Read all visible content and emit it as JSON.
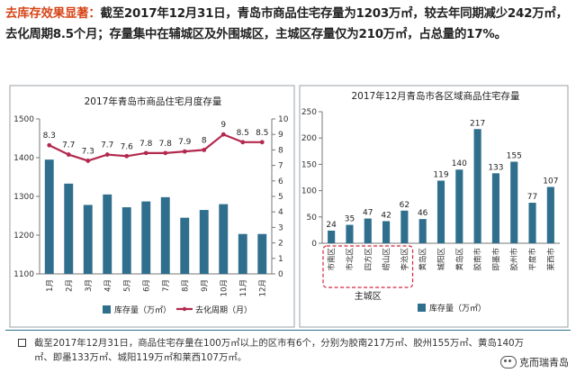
{
  "headline": {
    "highlight": "去库存效果显著：",
    "text": "截至2017年12月31日，青岛市商品住宅存量为1203万㎡，较去年同期减少242万㎡，去化周期8.5个月；存量集中在辅城区及外围城区，主城区存量仅为210万㎡，占总量的17%。"
  },
  "chart_data": [
    {
      "type": "bar",
      "title": "2017年青岛市商品住宅月度存量",
      "categories": [
        "1月",
        "2月",
        "3月",
        "4月",
        "5月",
        "6月",
        "7月",
        "8月",
        "9月",
        "10月",
        "11月",
        "12月"
      ],
      "ylim": [
        1100,
        1500
      ],
      "y2lim": [
        0,
        10
      ],
      "yticks": [
        "1100",
        "1200",
        "1300",
        "1400",
        "1500"
      ],
      "y2ticks": [
        "0",
        "1",
        "2",
        "3",
        "4",
        "5",
        "6",
        "7",
        "8",
        "9",
        "10"
      ],
      "series": [
        {
          "name": "库存量（万㎡）",
          "type": "bar",
          "color": "#2f6f8d",
          "values": [
            1395,
            1333,
            1278,
            1305,
            1272,
            1287,
            1298,
            1245,
            1265,
            1280,
            1203,
            1203
          ]
        },
        {
          "name": "去化周期（月）",
          "type": "line",
          "axis": "right",
          "color": "#b3294e",
          "values": [
            8.3,
            7.7,
            7.3,
            7.7,
            7.6,
            7.8,
            7.8,
            7.9,
            8,
            9,
            8.5,
            8.5
          ],
          "labels": [
            "8.3",
            "7.7",
            "7.3",
            "7.7",
            "7.6",
            "7.8",
            "7.8",
            "7.9",
            "8",
            "9",
            "8.5",
            "8.5"
          ]
        }
      ],
      "legend": "bottom"
    },
    {
      "type": "bar",
      "title": "2017年12月青岛市各区域商品住宅存量",
      "categories": [
        "市南区",
        "市北区",
        "四方区",
        "崂山区",
        "李沧区",
        "黄岛区",
        "城阳区",
        "黄岛区",
        "胶南市",
        "即墨市",
        "胶州市",
        "平度市",
        "莱西市"
      ],
      "values": [
        24,
        35,
        47,
        42,
        62,
        46,
        119,
        140,
        217,
        133,
        155,
        77,
        107
      ],
      "labels": [
        "24",
        "35",
        "47",
        "42",
        "62",
        "46",
        "119",
        "140",
        "217",
        "133",
        "155",
        "77",
        "107"
      ],
      "ylim": [
        0,
        250
      ],
      "yticks": [
        "0",
        "50",
        "100",
        "150",
        "200",
        "250"
      ],
      "group_label": "主城区",
      "series": [
        {
          "name": "库存量（万㎡）",
          "color": "#2f6f8d"
        }
      ],
      "legend": "bottom"
    }
  ],
  "footnote": "截至2017年12月31日，商品住宅存量在100万㎡以上的区市有6个，分别为胶南217万㎡、胶州155万㎡、黄岛140万㎡、即墨133万㎡、城阳119万㎡和莱西107万㎡。",
  "watermark": "克而瑞青岛"
}
